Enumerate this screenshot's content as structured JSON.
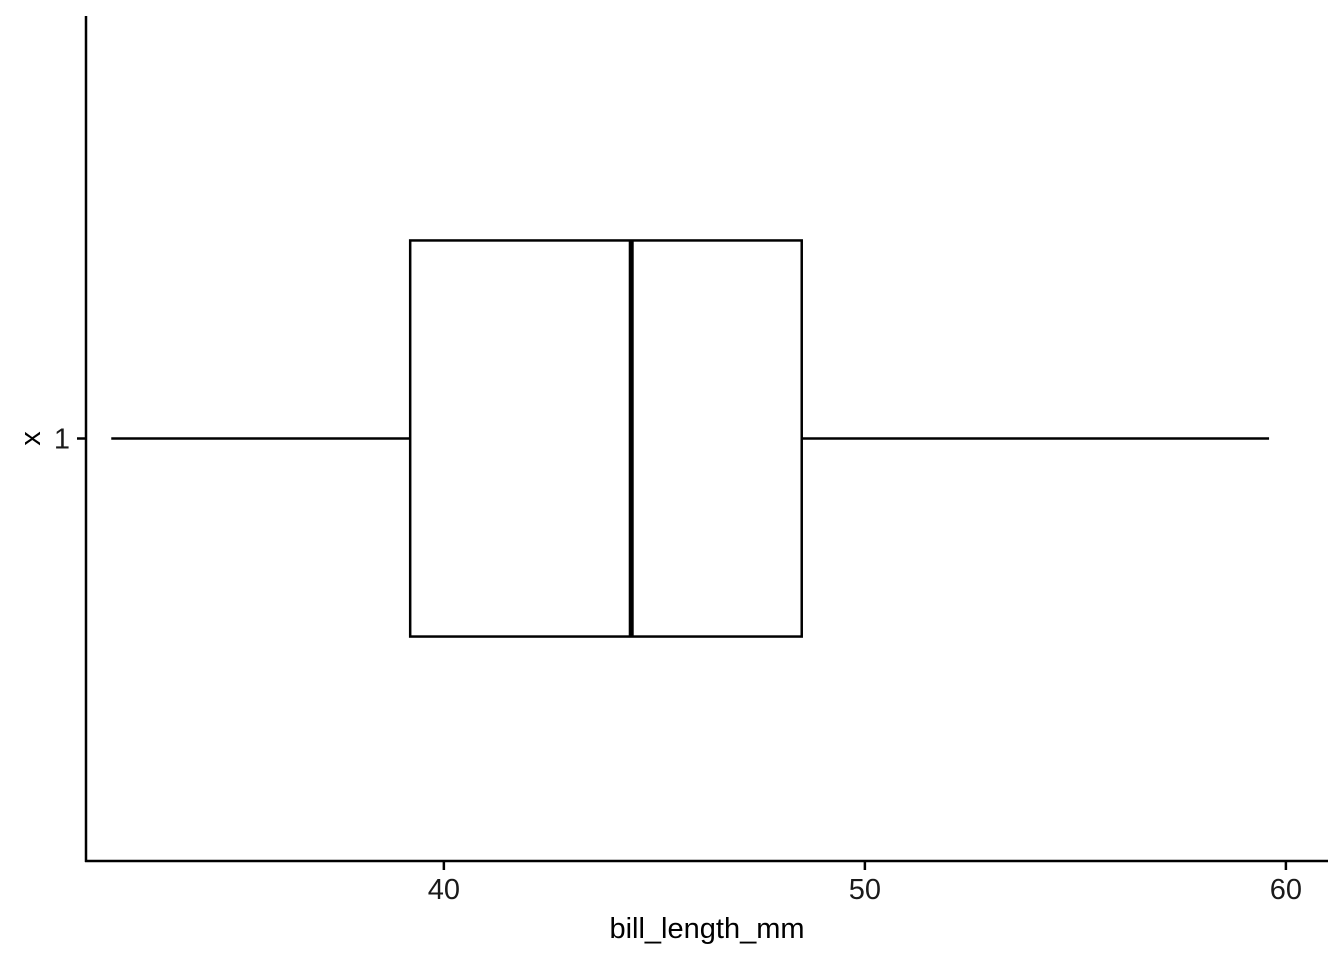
{
  "chart_data": {
    "type": "boxplot",
    "orientation": "horizontal",
    "title": "",
    "xlabel": "bill_length_mm",
    "ylabel": "x",
    "xlim": [
      31.5,
      61.0
    ],
    "x_ticks": [
      40,
      50,
      60
    ],
    "categories": [
      "1"
    ],
    "boxes": [
      {
        "category": "1",
        "min": 32.1,
        "q1": 39.2,
        "median": 44.45,
        "q3": 48.5,
        "max": 59.6
      }
    ],
    "grid": false,
    "legend": "none",
    "colors": {
      "line": "#000000",
      "fill": "#ffffff"
    }
  }
}
